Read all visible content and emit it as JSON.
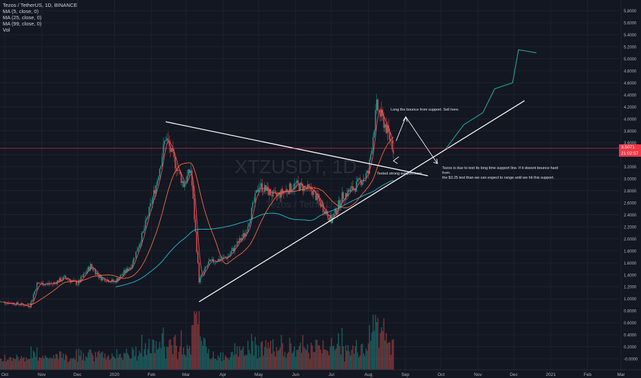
{
  "legend": {
    "symbol_line": "Tezos / TetherUS, 1D, BINANCE",
    "ma5": "MA (5, close, 0)",
    "ma25": "MA (25, close, 0)",
    "ma99": "MA (99, close, 0)",
    "vol": "Vol"
  },
  "watermark": {
    "symbol": "XTZUSDT, 1D",
    "name": "Tezos / TetherUS"
  },
  "price_tags": {
    "last_price": "3.5071",
    "countdown": "21:02:57"
  },
  "annotations": {
    "top_note": "Long the bounce from support. Sell here.",
    "support_note": "Tested strong support here.",
    "main_note_line1": "Tezos is due to test its long time support line. If it doesnt bounce hard from",
    "main_note_line2": "the $3.25 test than we can expect to range until we hit this support."
  },
  "colors": {
    "background": "#131722",
    "up_candle": "#26a69a",
    "down_candle": "#ef5350",
    "ma5": "#f7525f",
    "ma25": "#ff6e40",
    "ma99": "#26c6da",
    "trendline": "#ffffff",
    "projection": "#26a69a",
    "price_line": "#f23645"
  },
  "chart_data": {
    "type": "candlestick",
    "title": "Tezos / TetherUS, 1D, BINANCE",
    "y_axis_ticks": [
      "5.8000",
      "5.6000",
      "5.4000",
      "5.2000",
      "5.0000",
      "4.8000",
      "4.6000",
      "4.4000",
      "4.2000",
      "4.0000",
      "3.8000",
      "3.6000",
      "3.4000",
      "3.2000",
      "3.0000",
      "2.8000",
      "2.6000",
      "2.4000",
      "2.2000",
      "2.0000",
      "1.8000",
      "1.6000",
      "1.4000",
      "1.2000",
      "1.0000",
      "0.8000",
      "0.6000",
      "0.4000",
      "0.2000",
      "-0.0000"
    ],
    "x_axis_ticks": [
      "Oct",
      "Nov",
      "Dec",
      "2020",
      "Feb",
      "Mar",
      "Apr",
      "May",
      "Jun",
      "Jul",
      "Aug",
      "Sep",
      "Oct",
      "Nov",
      "Dec",
      "2021",
      "Feb",
      "Mar"
    ],
    "close_path": [
      {
        "date": "2019-09-26",
        "price": 0.95
      },
      {
        "date": "2019-10-10",
        "price": 0.92
      },
      {
        "date": "2019-10-22",
        "price": 0.88
      },
      {
        "date": "2019-10-28",
        "price": 1.25
      },
      {
        "date": "2019-11-10",
        "price": 1.25
      },
      {
        "date": "2019-11-20",
        "price": 1.35
      },
      {
        "date": "2019-12-01",
        "price": 1.25
      },
      {
        "date": "2019-12-12",
        "price": 1.55
      },
      {
        "date": "2019-12-20",
        "price": 1.35
      },
      {
        "date": "2020-01-01",
        "price": 1.28
      },
      {
        "date": "2020-01-15",
        "price": 1.55
      },
      {
        "date": "2020-01-25",
        "price": 2.1
      },
      {
        "date": "2020-02-05",
        "price": 2.9
      },
      {
        "date": "2020-02-13",
        "price": 3.7
      },
      {
        "date": "2020-02-20",
        "price": 3.3
      },
      {
        "date": "2020-02-28",
        "price": 2.9
      },
      {
        "date": "2020-03-05",
        "price": 3.15
      },
      {
        "date": "2020-03-12",
        "price": 1.3
      },
      {
        "date": "2020-03-20",
        "price": 1.6
      },
      {
        "date": "2020-04-05",
        "price": 1.7
      },
      {
        "date": "2020-04-20",
        "price": 2.1
      },
      {
        "date": "2020-05-01",
        "price": 2.9
      },
      {
        "date": "2020-05-15",
        "price": 2.7
      },
      {
        "date": "2020-06-01",
        "price": 2.9
      },
      {
        "date": "2020-06-15",
        "price": 2.8
      },
      {
        "date": "2020-07-01",
        "price": 2.3
      },
      {
        "date": "2020-07-10",
        "price": 2.7
      },
      {
        "date": "2020-07-20",
        "price": 2.85
      },
      {
        "date": "2020-08-01",
        "price": 3.1
      },
      {
        "date": "2020-08-08",
        "price": 4.2
      },
      {
        "date": "2020-08-15",
        "price": 3.9
      },
      {
        "date": "2020-08-22",
        "price": 3.5
      }
    ],
    "trendlines": [
      {
        "name": "resistance",
        "from": {
          "date": "2020-02-13",
          "price": 3.95
        },
        "to": {
          "date": "2020-09-20",
          "price": 3.05
        }
      },
      {
        "name": "support",
        "from": {
          "date": "2020-03-12",
          "price": 0.95
        },
        "to": {
          "date": "2020-12-10",
          "price": 4.3
        }
      }
    ],
    "projection": [
      {
        "date": "2020-10-05",
        "price": 3.5
      },
      {
        "date": "2020-10-20",
        "price": 3.9
      },
      {
        "date": "2020-11-05",
        "price": 4.1
      },
      {
        "date": "2020-11-15",
        "price": 4.5
      },
      {
        "date": "2020-11-30",
        "price": 4.6
      },
      {
        "date": "2020-12-05",
        "price": 5.15
      },
      {
        "date": "2020-12-20",
        "price": 5.1
      }
    ],
    "last_price": 3.5071
  }
}
